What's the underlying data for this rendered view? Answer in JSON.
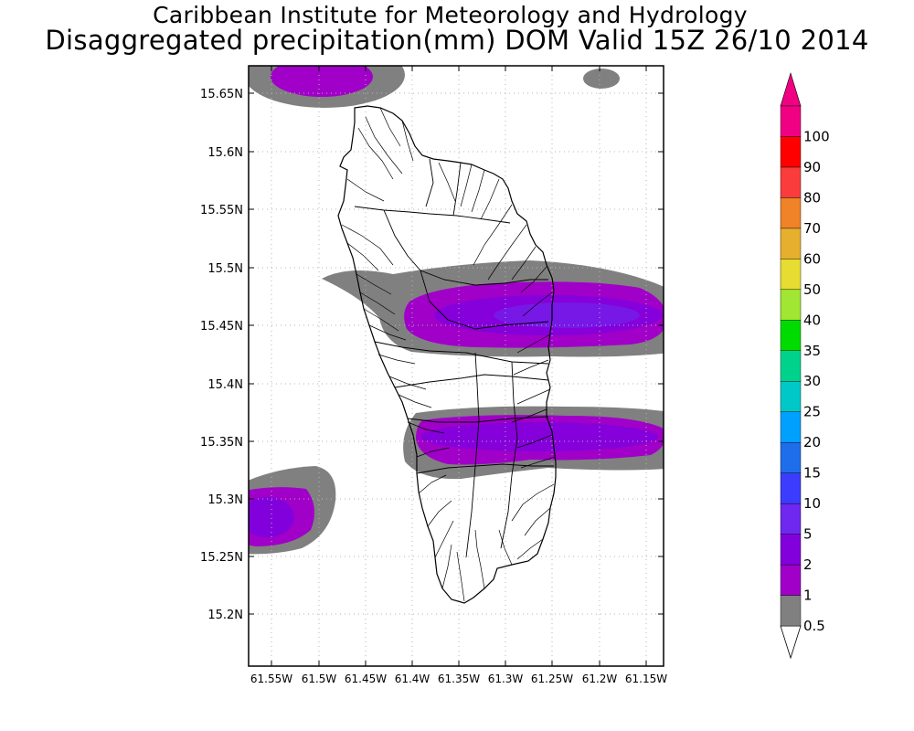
{
  "header": {
    "institute": "Caribbean Institute for Meteorology and Hydrology",
    "product": "Disaggregated precipitation(mm) DOM Valid 15Z 26/10 2014"
  },
  "map": {
    "lat_labels": [
      "15.65N",
      "15.6N",
      "15.55N",
      "15.5N",
      "15.45N",
      "15.4N",
      "15.35N",
      "15.3N",
      "15.25N",
      "15.2N"
    ],
    "lon_labels": [
      "61.55W",
      "61.5W",
      "61.45W",
      "61.4W",
      "61.35W",
      "61.3W",
      "61.25W",
      "61.2W",
      "61.15W"
    ],
    "grid": "dotted"
  },
  "legend": {
    "levels": [
      "0.5",
      "1",
      "2",
      "5",
      "10",
      "15",
      "20",
      "25",
      "30",
      "35",
      "40",
      "50",
      "60",
      "70",
      "80",
      "90",
      "100"
    ],
    "colors": [
      "#808080",
      "#a000c8",
      "#8200dc",
      "#6e28f0",
      "#3c3cff",
      "#1e6eeb",
      "#00a0ff",
      "#00c8c8",
      "#00d28c",
      "#00dc00",
      "#a0e632",
      "#e6dc32",
      "#e6af2d",
      "#f08228",
      "#fa3c3c",
      "#ff0000",
      "#f00082"
    ]
  }
}
